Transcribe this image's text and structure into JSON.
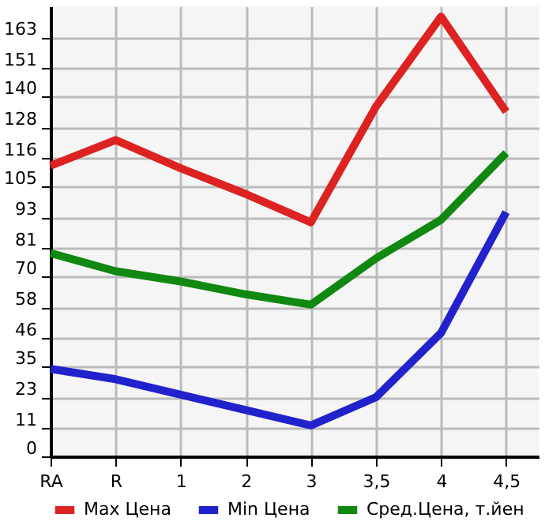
{
  "chart_data": {
    "type": "line",
    "categories": [
      "RA",
      "R",
      "1",
      "2",
      "3",
      "3,5",
      "4",
      "4,5"
    ],
    "series": [
      {
        "name": "Max Цена",
        "color": "#dd2222",
        "values": [
          113,
          123,
          112,
          102,
          91,
          136,
          171,
          134
        ]
      },
      {
        "name": "Min Цена",
        "color": "#2222cc",
        "values": [
          34,
          30,
          24,
          18,
          12,
          23,
          48,
          95
        ]
      },
      {
        "name": "Сред.Цена, т.йен",
        "color": "#118811",
        "values": [
          79,
          72,
          68,
          63,
          59,
          77,
          92,
          118
        ]
      }
    ],
    "ylim": [
      0,
      175
    ],
    "yticks": [
      0,
      11,
      23,
      35,
      46,
      58,
      70,
      81,
      93,
      105,
      116,
      128,
      140,
      151,
      163
    ],
    "grid": true,
    "legend": "bottom",
    "marker": "none",
    "line_style": "solid"
  }
}
